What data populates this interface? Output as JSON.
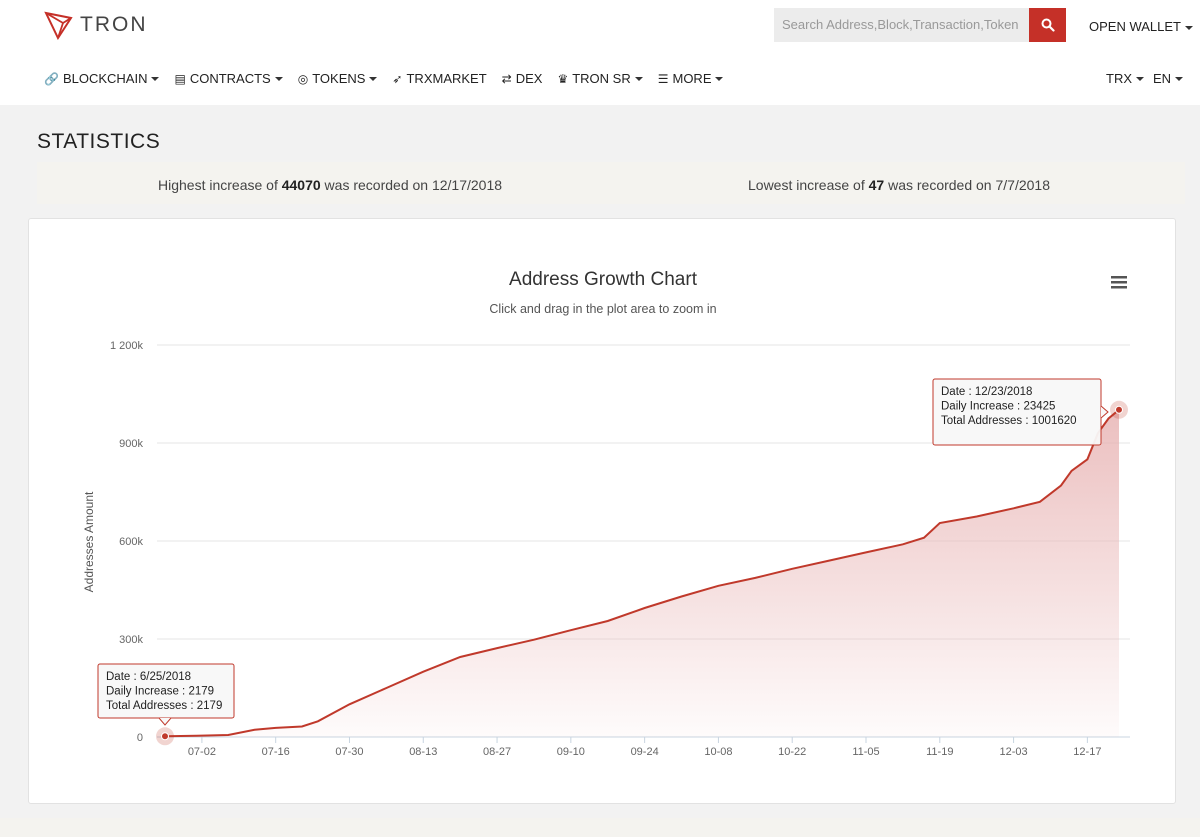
{
  "header": {
    "logo_text": "TRON",
    "search_placeholder": "Search Address,Block,Transaction,Token",
    "open_wallet": "OPEN WALLET"
  },
  "nav": {
    "items": [
      {
        "label": "BLOCKCHAIN",
        "icon": "link-icon",
        "dropdown": true
      },
      {
        "label": "CONTRACTS",
        "icon": "file-icon",
        "dropdown": true
      },
      {
        "label": "TOKENS",
        "icon": "coins-icon",
        "dropdown": true
      },
      {
        "label": "TRXMARKET",
        "icon": "rocket-icon",
        "dropdown": false
      },
      {
        "label": "DEX",
        "icon": "exchange-icon",
        "dropdown": false
      },
      {
        "label": "TRON SR",
        "icon": "crown-icon",
        "dropdown": true
      },
      {
        "label": "MORE",
        "icon": "list-icon",
        "dropdown": true
      }
    ],
    "currency": "TRX",
    "language": "EN"
  },
  "page_title": "STATISTICS",
  "summary": {
    "high_prefix": "Highest increase of ",
    "high_value": "44070",
    "high_suffix": " was recorded on 12/17/2018",
    "low_prefix": "Lowest increase of ",
    "low_value": "47",
    "low_suffix": " was recorded on 7/7/2018"
  },
  "colors": {
    "accent": "#c53028",
    "line": "#c0392b",
    "fill": "#e8b4b4"
  },
  "chart_data": {
    "type": "area",
    "title": "Address Growth Chart",
    "subtitle": "Click and drag in the plot area to zoom in",
    "ylabel": "Addresses Amount",
    "xlabel": "",
    "ylim": [
      0,
      1200000
    ],
    "y_ticks": [
      0,
      300000,
      600000,
      900000,
      1200000
    ],
    "y_tick_labels": [
      "0",
      "300k",
      "600k",
      "900k",
      "1 200k"
    ],
    "x_range": [
      "2018-06-25",
      "2018-12-23"
    ],
    "x_ticks": [
      "2018-07-02",
      "2018-07-16",
      "2018-07-30",
      "2018-08-13",
      "2018-08-27",
      "2018-09-10",
      "2018-09-24",
      "2018-10-08",
      "2018-10-22",
      "2018-11-05",
      "2018-11-19",
      "2018-12-03",
      "2018-12-17"
    ],
    "x_tick_labels": [
      "07-02",
      "07-16",
      "07-30",
      "08-13",
      "08-27",
      "09-10",
      "09-24",
      "10-08",
      "10-22",
      "11-05",
      "11-19",
      "12-03",
      "12-17"
    ],
    "grid": true,
    "series": [
      {
        "points": [
          [
            "2018-06-25",
            2179
          ],
          [
            "2018-07-01",
            4000
          ],
          [
            "2018-07-07",
            6000
          ],
          [
            "2018-07-12",
            22000
          ],
          [
            "2018-07-16",
            28000
          ],
          [
            "2018-07-21",
            32000
          ],
          [
            "2018-07-24",
            48000
          ],
          [
            "2018-07-30",
            100000
          ],
          [
            "2018-08-06",
            150000
          ],
          [
            "2018-08-13",
            200000
          ],
          [
            "2018-08-20",
            245000
          ],
          [
            "2018-08-27",
            272000
          ],
          [
            "2018-09-03",
            298000
          ],
          [
            "2018-09-10",
            327000
          ],
          [
            "2018-09-17",
            355000
          ],
          [
            "2018-09-24",
            395000
          ],
          [
            "2018-10-01",
            430000
          ],
          [
            "2018-10-08",
            463000
          ],
          [
            "2018-10-15",
            487000
          ],
          [
            "2018-10-22",
            515000
          ],
          [
            "2018-10-29",
            540000
          ],
          [
            "2018-11-05",
            565000
          ],
          [
            "2018-11-12",
            590000
          ],
          [
            "2018-11-16",
            610000
          ],
          [
            "2018-11-19",
            655000
          ],
          [
            "2018-11-26",
            675000
          ],
          [
            "2018-12-03",
            700000
          ],
          [
            "2018-12-08",
            720000
          ],
          [
            "2018-12-12",
            770000
          ],
          [
            "2018-12-14",
            815000
          ],
          [
            "2018-12-17",
            850000
          ],
          [
            "2018-12-19",
            930000
          ],
          [
            "2018-12-21",
            975000
          ],
          [
            "2018-12-23",
            1001620
          ]
        ]
      }
    ],
    "tooltips": [
      {
        "date": "Date : 6/25/2018",
        "daily": "Daily Increase : 2179",
        "total": "Total Addresses : 2179"
      },
      {
        "date": "Date : 12/23/2018",
        "daily": "Daily Increase : 23425",
        "total": "Total Addresses : 1001620"
      }
    ]
  }
}
